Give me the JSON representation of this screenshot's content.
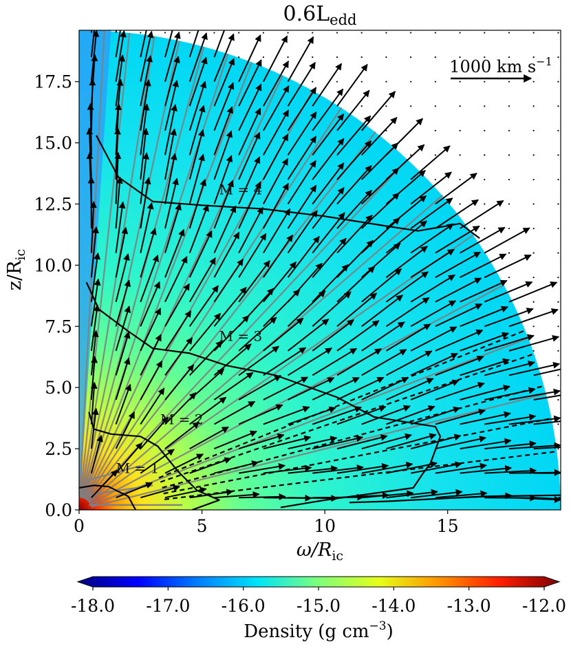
{
  "chart_data": {
    "type": "heatmap",
    "title": "0.6L",
    "title_subscript": "edd",
    "xlabel": "ω/R",
    "xlabel_subscript": "ic",
    "ylabel": "z/R",
    "ylabel_subscript": "ic",
    "xlim": [
      0,
      19.6
    ],
    "ylim": [
      0,
      19.6
    ],
    "x_ticks": [
      0,
      5,
      10,
      15
    ],
    "x_tick_labels": [
      "0",
      "5",
      "10",
      "15"
    ],
    "y_ticks": [
      0,
      2.5,
      5,
      7.5,
      10,
      12.5,
      15,
      17.5
    ],
    "y_tick_labels": [
      "0.0",
      "2.5",
      "5.0",
      "7.5",
      "10.0",
      "12.5",
      "15.0",
      "17.5"
    ],
    "domain_outer_radius": 19.6,
    "colorbar": {
      "label": "Density (g cm",
      "label_superscript": "−3",
      "label_suffix": ")",
      "min": -18,
      "max": -12,
      "ticks": [
        -18,
        -17,
        -16,
        -15,
        -14,
        -13,
        -12
      ],
      "tick_labels": [
        "-18.0",
        "-17.0",
        "-16.0",
        "-15.0",
        "-14.0",
        "-13.0",
        "-12.0"
      ],
      "colormap": [
        "#00007f",
        "#0000ff",
        "#007fff",
        "#00e5f7",
        "#7dff7a",
        "#e5ff1a",
        "#ff9400",
        "#ff1e00",
        "#7f0000"
      ]
    },
    "density_model": {
      "center_log_density": -12.4,
      "core_radius": 3.2,
      "outer_log_density": -15.6,
      "polar_log_density": -16.8
    },
    "mach_contours": [
      {
        "label": "M = 1",
        "label_pos": [
          1.5,
          1.5
        ],
        "points": [
          [
            0,
            0.9
          ],
          [
            0.6,
            1.0
          ],
          [
            1.2,
            0.95
          ],
          [
            2.0,
            0.55
          ],
          [
            2.3,
            0.0
          ]
        ]
      },
      {
        "label": "M = 2",
        "label_pos": [
          3.3,
          3.5
        ],
        "points": [
          [
            0.4,
            4.0
          ],
          [
            0.6,
            3.3
          ],
          [
            1.3,
            3.1
          ],
          [
            2.5,
            3.0
          ],
          [
            3.2,
            2.6
          ],
          [
            4.0,
            1.6
          ],
          [
            4.8,
            0.8
          ],
          [
            5.7,
            0.4
          ],
          [
            4.6,
            0.0
          ]
        ]
      },
      {
        "label": "M = 3",
        "label_pos": [
          5.7,
          6.9
        ],
        "points": [
          [
            0.3,
            9.3
          ],
          [
            0.8,
            8.2
          ],
          [
            2.0,
            7.3
          ],
          [
            3.0,
            6.6
          ],
          [
            4.5,
            6.4
          ],
          [
            6.0,
            5.9
          ],
          [
            8.0,
            5.5
          ],
          [
            10.5,
            4.6
          ],
          [
            12.0,
            3.8
          ],
          [
            14.5,
            3.4
          ],
          [
            14.7,
            3.0
          ],
          [
            14.3,
            1.9
          ],
          [
            14.0,
            1.5
          ],
          [
            13.6,
            0.9
          ],
          [
            10.0,
            0.4
          ],
          [
            8.2,
            0.1
          ]
        ]
      },
      {
        "label": "M = 4",
        "label_pos": [
          5.7,
          12.9
        ],
        "points": [
          [
            0.7,
            15.3
          ],
          [
            1.6,
            13.6
          ],
          [
            3.0,
            12.6
          ],
          [
            5.0,
            12.45
          ],
          [
            7.5,
            12.3
          ],
          [
            10.0,
            12.0
          ],
          [
            12.5,
            11.6
          ],
          [
            13.8,
            11.4
          ],
          [
            15.5,
            11.7
          ],
          [
            16.3,
            11.1
          ]
        ]
      },
      {
        "label": "",
        "label_pos": [
          0,
          0
        ],
        "points": [
          [
            11.0,
            0.3
          ],
          [
            12.5,
            0.35
          ],
          [
            14.5,
            0.45
          ],
          [
            16.5,
            0.55
          ],
          [
            19.6,
            0.6
          ]
        ]
      }
    ],
    "streamline_angles_deg": [
      87,
      84,
      81,
      78,
      75,
      72,
      69,
      65,
      61,
      57,
      52,
      47,
      41,
      35,
      28,
      21,
      14
    ],
    "dashed_line_angles_deg": [
      7,
      11,
      15,
      19,
      22
    ],
    "arrow_field_note": "radial outflow vectors",
    "velocity_scale_arrow": {
      "label": "1000 km s",
      "label_superscript": "−1",
      "value_km_s": 1000
    }
  }
}
